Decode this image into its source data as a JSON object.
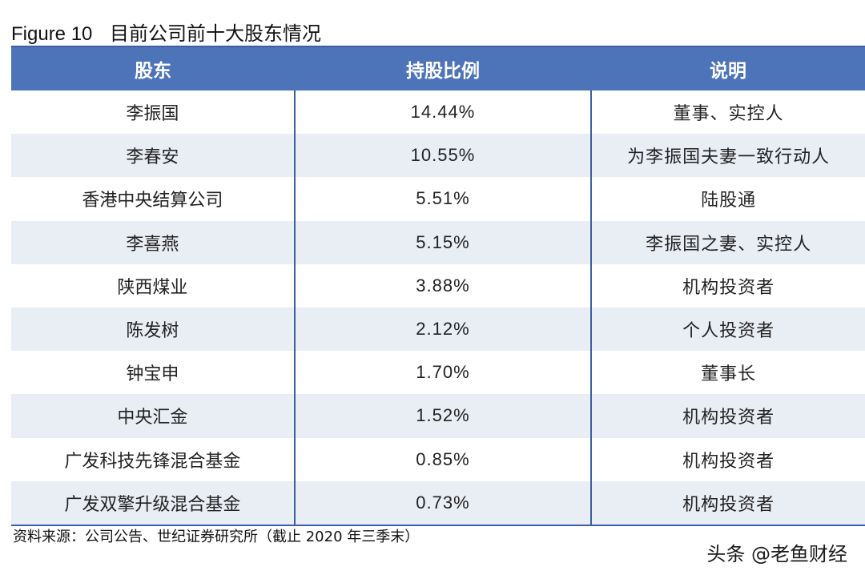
{
  "figure": {
    "number": "Figure 10",
    "title": "目前公司前十大股东情况"
  },
  "table": {
    "headers": [
      "股东",
      "持股比例",
      "说明"
    ],
    "rows": [
      [
        "李振国",
        "14.44%",
        "董事、实控人"
      ],
      [
        "李春安",
        "10.55%",
        "为李振国夫妻一致行动人"
      ],
      [
        "香港中央结算公司",
        "5.51%",
        "陆股通"
      ],
      [
        "李喜燕",
        "5.15%",
        "李振国之妻、实控人"
      ],
      [
        "陕西煤业",
        "3.88%",
        "机构投资者"
      ],
      [
        "陈发树",
        "2.12%",
        "个人投资者"
      ],
      [
        "钟宝申",
        "1.70%",
        "董事长"
      ],
      [
        "中央汇金",
        "1.52%",
        "机构投资者"
      ],
      [
        "广发科技先锋混合基金",
        "0.85%",
        "机构投资者"
      ],
      [
        "广发双擎升级混合基金",
        "0.73%",
        "机构投资者"
      ]
    ]
  },
  "source": "资料来源：公司公告、世纪证券研究所（截止 2020 年三季末）",
  "watermark": "头条 @老鱼财经"
}
